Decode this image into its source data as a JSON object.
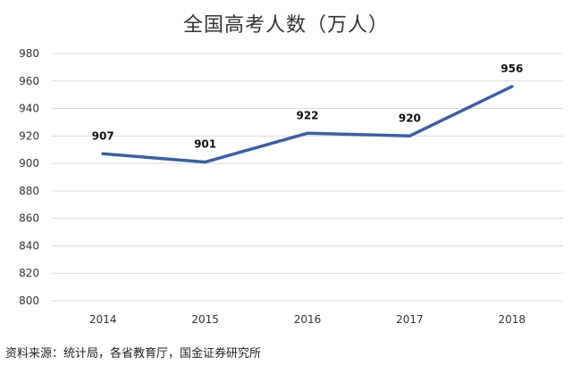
{
  "chart_data": {
    "type": "line",
    "title": "全国高考人数（万人）",
    "categories": [
      "2014",
      "2015",
      "2016",
      "2017",
      "2018"
    ],
    "series": [
      {
        "values": [
          907,
          901,
          922,
          920,
          956
        ]
      }
    ],
    "data_labels": [
      "907",
      "901",
      "922",
      "920",
      "956"
    ],
    "ylim": [
      800,
      980
    ],
    "yticks": [
      800,
      820,
      840,
      860,
      880,
      900,
      920,
      940,
      960,
      980
    ],
    "grid": true,
    "legend": "none",
    "line_color": "#3d5fa0"
  },
  "source_note": "资料来源：统计局，各省教育厅，国金证券研究所"
}
